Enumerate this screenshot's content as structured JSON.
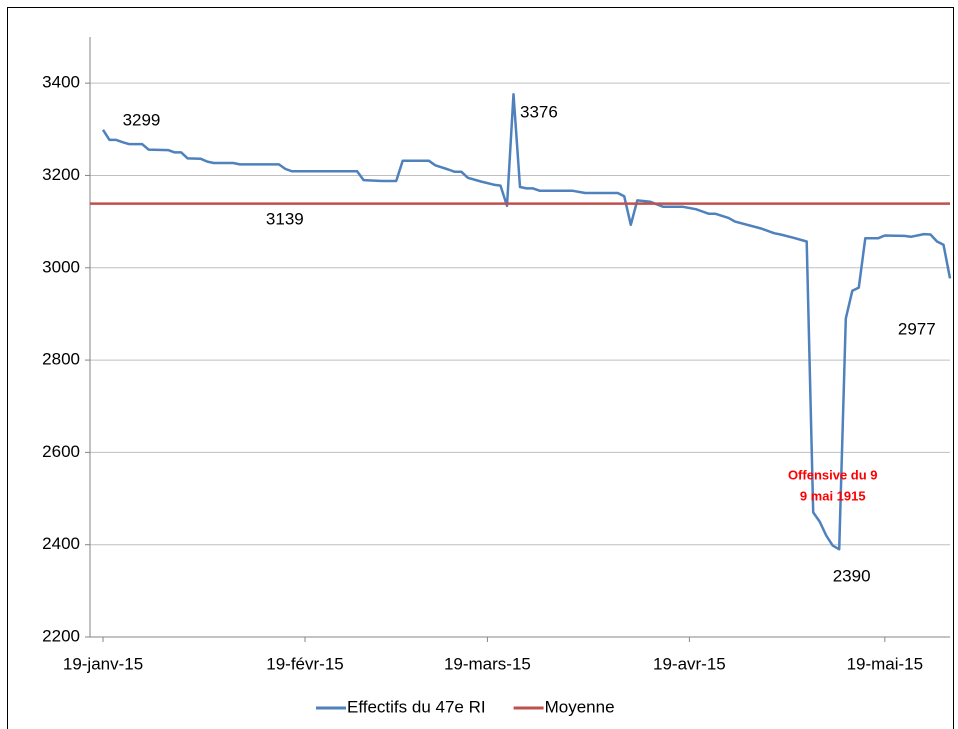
{
  "chart_data": {
    "type": "line",
    "xlim": [
      "2015-01-17",
      "2015-05-29"
    ],
    "xticks": [
      {
        "value": "2015-01-19",
        "label": "19-janv-15"
      },
      {
        "value": "2015-02-19",
        "label": "19-févr-15"
      },
      {
        "value": "2015-03-19",
        "label": "19-mars-15"
      },
      {
        "value": "2015-04-19",
        "label": "19-avr-15"
      },
      {
        "value": "2015-05-19",
        "label": "19-mai-15"
      }
    ],
    "ylim": [
      2200,
      3500
    ],
    "yticks": [
      2200,
      2400,
      2600,
      2800,
      3000,
      3200,
      3400
    ],
    "grid": true,
    "legend": "bottom",
    "x": [
      "2015-01-19",
      "2015-01-20",
      "2015-01-21",
      "2015-01-22",
      "2015-01-23",
      "2015-01-25",
      "2015-01-26",
      "2015-01-29",
      "2015-01-30",
      "2015-01-31",
      "2015-02-01",
      "2015-02-03",
      "2015-02-04",
      "2015-02-05",
      "2015-02-08",
      "2015-02-09",
      "2015-02-15",
      "2015-02-16",
      "2015-02-17",
      "2015-02-27",
      "2015-02-28",
      "2015-03-03",
      "2015-03-05",
      "2015-03-06",
      "2015-03-10",
      "2015-03-11",
      "2015-03-13",
      "2015-03-14",
      "2015-03-15",
      "2015-03-16",
      "2015-03-18",
      "2015-03-20",
      "2015-03-21",
      "2015-03-22",
      "2015-03-23",
      "2015-03-24",
      "2015-03-25",
      "2015-03-26",
      "2015-03-27",
      "2015-04-01",
      "2015-04-03",
      "2015-04-08",
      "2015-04-09",
      "2015-04-10",
      "2015-04-11",
      "2015-04-13",
      "2015-04-15",
      "2015-04-18",
      "2015-04-20",
      "2015-04-21",
      "2015-04-22",
      "2015-04-23",
      "2015-04-25",
      "2015-04-26",
      "2015-04-30",
      "2015-05-02",
      "2015-05-03",
      "2015-05-05",
      "2015-05-07",
      "2015-05-08",
      "2015-05-09",
      "2015-05-10",
      "2015-05-11",
      "2015-05-12",
      "2015-05-13",
      "2015-05-14",
      "2015-05-15",
      "2015-05-16",
      "2015-05-18",
      "2015-05-19",
      "2015-05-22",
      "2015-05-23",
      "2015-05-25",
      "2015-05-26",
      "2015-05-27",
      "2015-05-28",
      "2015-05-29"
    ],
    "series": [
      {
        "name": "Effectifs du 47e RI",
        "color": "#4f81bd",
        "values": [
          3299,
          3277,
          3277,
          3272,
          3268,
          3268,
          3256,
          3255,
          3250,
          3250,
          3237,
          3236,
          3230,
          3227,
          3227,
          3224,
          3224,
          3214,
          3209,
          3209,
          3190,
          3188,
          3188,
          3232,
          3232,
          3222,
          3213,
          3208,
          3208,
          3195,
          3187,
          3180,
          3178,
          3134,
          3376,
          3175,
          3172,
          3172,
          3167,
          3167,
          3162,
          3162,
          3155,
          3093,
          3146,
          3143,
          3132,
          3132,
          3127,
          3122,
          3117,
          3117,
          3108,
          3100,
          3085,
          3075,
          3072,
          3065,
          3057,
          2470,
          2450,
          2420,
          2398,
          2390,
          2890,
          2950,
          2957,
          3064,
          3064,
          3070,
          3069,
          3067,
          3073,
          3072,
          3057,
          3050,
          2977
        ]
      },
      {
        "name": "Moyenne",
        "color": "#c0504d",
        "x": [
          "2015-01-17",
          "2015-05-29"
        ],
        "values": [
          3139,
          3139
        ]
      }
    ],
    "annotations": [
      {
        "text": "3299",
        "x": "2015-01-22",
        "y": 3318
      },
      {
        "text": "3376",
        "x": "2015-03-24",
        "y": 3335
      },
      {
        "text": "3139",
        "x": "2015-02-13",
        "y": 3103
      },
      {
        "text": "2390",
        "x": "2015-05-11",
        "y": 2330
      },
      {
        "text": "2977",
        "x": "2015-05-21",
        "y": 2865
      },
      {
        "lines": [
          "Offensive du 9",
          "9 mai 1915"
        ],
        "x": "2015-05-11",
        "y": 2549,
        "color": "#ff0000"
      }
    ]
  }
}
